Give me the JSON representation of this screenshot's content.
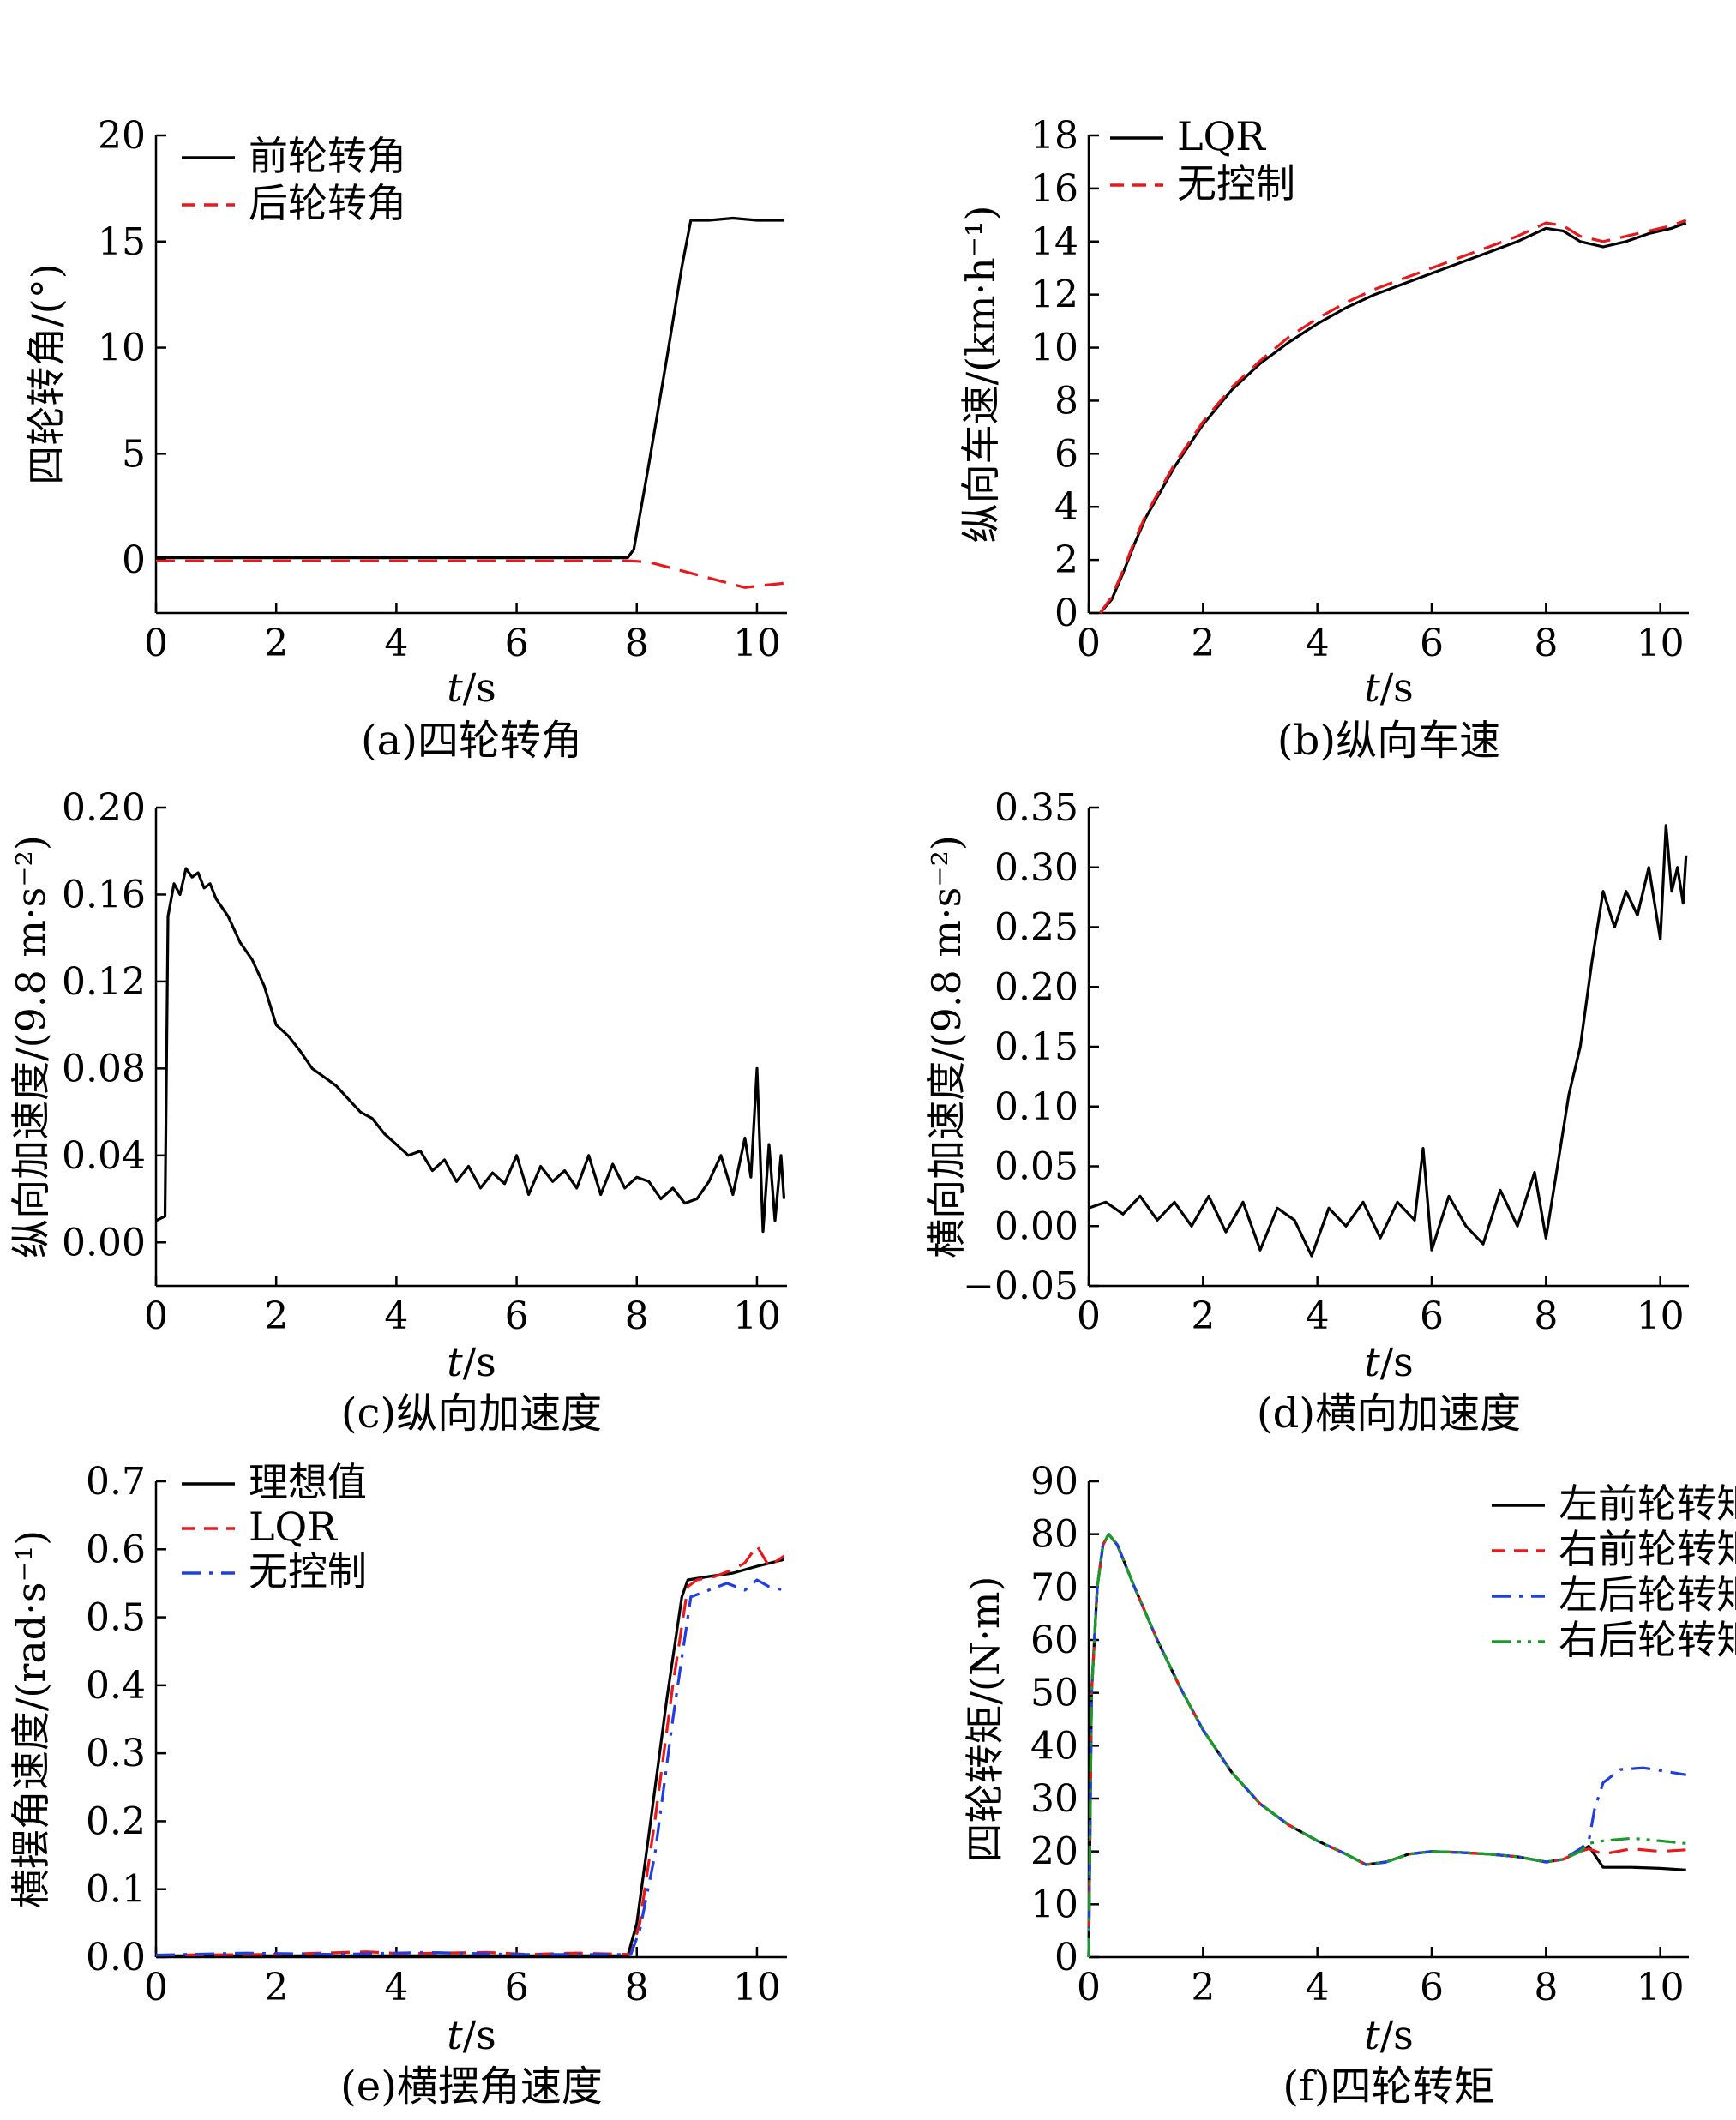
{
  "figure": {
    "panels": 6
  },
  "colors": {
    "black": "#000000",
    "red": "#e8191c",
    "blue": "#1f3fe0",
    "green": "#1a9a2a"
  },
  "chart_data": [
    {
      "id": "a",
      "type": "line",
      "caption": "(a)四轮转角",
      "ylabel": "四轮转角/(°)",
      "xlabel_it": "t",
      "xlabel_rest": "/s",
      "xlim": [
        0,
        10.5
      ],
      "ylim": [
        -2.5,
        20
      ],
      "xticks": [
        0,
        2,
        4,
        6,
        8,
        10
      ],
      "xtick_labels": [
        "0",
        "2",
        "4",
        "6",
        "8",
        "10"
      ],
      "yticks": [
        0,
        5,
        10,
        15,
        20
      ],
      "ytick_labels": [
        "0",
        "5",
        "10",
        "15",
        "20"
      ],
      "legend_position": "top-left",
      "series": [
        {
          "name": "前轮转角",
          "color": "#000000",
          "dash": "solid",
          "x": [
            0,
            7.85,
            7.95,
            8.2,
            8.5,
            8.75,
            8.9,
            9.2,
            9.6,
            10.0,
            10.45
          ],
          "y": [
            0.1,
            0.1,
            0.5,
            4.5,
            9.5,
            13.8,
            16.0,
            16.0,
            16.1,
            16.0,
            16.0
          ]
        },
        {
          "name": "后轮转角",
          "color": "#e8191c",
          "dash": "dash",
          "x": [
            0,
            7.9,
            8.2,
            8.6,
            9.0,
            9.4,
            9.8,
            10.1,
            10.45
          ],
          "y": [
            -0.05,
            -0.05,
            -0.1,
            -0.4,
            -0.7,
            -1.0,
            -1.3,
            -1.2,
            -1.1
          ]
        }
      ]
    },
    {
      "id": "b",
      "type": "line",
      "caption": "(b)纵向车速",
      "ylabel": "纵向车速/(km·h⁻¹)",
      "xlabel_it": "t",
      "xlabel_rest": "/s",
      "xlim": [
        0,
        10.5
      ],
      "ylim": [
        0,
        18
      ],
      "xticks": [
        0,
        2,
        4,
        6,
        8,
        10
      ],
      "xtick_labels": [
        "0",
        "2",
        "4",
        "6",
        "8",
        "10"
      ],
      "yticks": [
        0,
        2,
        4,
        6,
        8,
        10,
        12,
        14,
        16,
        18
      ],
      "ytick_labels": [
        "0",
        "2",
        "4",
        "6",
        "8",
        "10",
        "12",
        "14",
        "16",
        "18"
      ],
      "legend_position": "top-left",
      "series": [
        {
          "name": "LQR",
          "color": "#000000",
          "dash": "solid",
          "x": [
            0.2,
            0.4,
            0.6,
            0.8,
            1.0,
            1.5,
            2.0,
            2.5,
            3.0,
            3.5,
            4.0,
            4.5,
            5.0,
            5.5,
            6.0,
            6.5,
            7.0,
            7.5,
            8.0,
            8.3,
            8.6,
            9.0,
            9.4,
            9.8,
            10.2,
            10.45
          ],
          "y": [
            0,
            0.5,
            1.5,
            2.6,
            3.6,
            5.5,
            7.1,
            8.4,
            9.4,
            10.2,
            10.9,
            11.5,
            12.0,
            12.4,
            12.8,
            13.2,
            13.6,
            14.0,
            14.5,
            14.4,
            14.0,
            13.8,
            14.0,
            14.3,
            14.5,
            14.7
          ]
        },
        {
          "name": "无控制",
          "color": "#e8191c",
          "dash": "dash",
          "x": [
            0.2,
            0.4,
            0.6,
            0.8,
            1.0,
            1.5,
            2.0,
            2.5,
            3.0,
            3.5,
            4.0,
            4.5,
            5.0,
            5.5,
            6.0,
            6.5,
            7.0,
            7.5,
            8.0,
            8.3,
            8.6,
            9.0,
            9.4,
            9.8,
            10.2,
            10.45
          ],
          "y": [
            0,
            0.6,
            1.6,
            2.7,
            3.7,
            5.6,
            7.2,
            8.5,
            9.5,
            10.4,
            11.1,
            11.7,
            12.2,
            12.6,
            13.0,
            13.4,
            13.8,
            14.2,
            14.7,
            14.6,
            14.2,
            14.0,
            14.2,
            14.4,
            14.6,
            14.8
          ]
        }
      ]
    },
    {
      "id": "c",
      "type": "line",
      "caption": "(c)纵向加速度",
      "ylabel": "纵向加速度/(9.8 m·s⁻²)",
      "xlabel_it": "t",
      "xlabel_rest": "/s",
      "xlim": [
        0,
        10.5
      ],
      "ylim": [
        -0.02,
        0.2
      ],
      "xticks": [
        0,
        2,
        4,
        6,
        8,
        10
      ],
      "xtick_labels": [
        "0",
        "2",
        "4",
        "6",
        "8",
        "10"
      ],
      "yticks": [
        0,
        0.04,
        0.08,
        0.12,
        0.16,
        0.2
      ],
      "ytick_labels": [
        "0.00",
        "0.04",
        "0.08",
        "0.12",
        "0.16",
        "0.20"
      ],
      "series": [
        {
          "name": "",
          "color": "#000000",
          "dash": "solid",
          "x": [
            0,
            0.15,
            0.2,
            0.3,
            0.4,
            0.5,
            0.6,
            0.7,
            0.8,
            0.9,
            1.0,
            1.2,
            1.4,
            1.6,
            1.8,
            2.0,
            2.2,
            2.4,
            2.6,
            2.8,
            3.0,
            3.2,
            3.4,
            3.6,
            3.8,
            4.0,
            4.2,
            4.4,
            4.6,
            4.8,
            5.0,
            5.2,
            5.4,
            5.6,
            5.8,
            6.0,
            6.2,
            6.4,
            6.6,
            6.8,
            7.0,
            7.2,
            7.4,
            7.6,
            7.8,
            8.0,
            8.2,
            8.4,
            8.6,
            8.8,
            9.0,
            9.2,
            9.4,
            9.6,
            9.8,
            9.9,
            10.0,
            10.1,
            10.2,
            10.3,
            10.4,
            10.45
          ],
          "y": [
            0.01,
            0.012,
            0.15,
            0.165,
            0.16,
            0.172,
            0.168,
            0.17,
            0.163,
            0.165,
            0.158,
            0.15,
            0.138,
            0.13,
            0.118,
            0.1,
            0.095,
            0.088,
            0.08,
            0.076,
            0.072,
            0.066,
            0.06,
            0.057,
            0.05,
            0.045,
            0.04,
            0.042,
            0.033,
            0.038,
            0.028,
            0.035,
            0.025,
            0.032,
            0.027,
            0.04,
            0.022,
            0.035,
            0.028,
            0.033,
            0.025,
            0.04,
            0.022,
            0.036,
            0.025,
            0.03,
            0.028,
            0.02,
            0.025,
            0.018,
            0.02,
            0.028,
            0.04,
            0.022,
            0.048,
            0.03,
            0.08,
            0.005,
            0.045,
            0.01,
            0.04,
            0.02
          ]
        }
      ]
    },
    {
      "id": "d",
      "type": "line",
      "caption": "(d)横向加速度",
      "ylabel": "横向加速度/(9.8 m·s⁻²)",
      "xlabel_it": "t",
      "xlabel_rest": "/s",
      "xlim": [
        0,
        10.5
      ],
      "ylim": [
        -0.05,
        0.35
      ],
      "xticks": [
        0,
        2,
        4,
        6,
        8,
        10
      ],
      "xtick_labels": [
        "0",
        "2",
        "4",
        "6",
        "8",
        "10"
      ],
      "yticks": [
        -0.05,
        0,
        0.05,
        0.1,
        0.15,
        0.2,
        0.25,
        0.3,
        0.35
      ],
      "ytick_labels": [
        "−0.05",
        "0.00",
        "0.05",
        "0.10",
        "0.15",
        "0.20",
        "0.25",
        "0.30",
        "0.35"
      ],
      "series": [
        {
          "name": "",
          "color": "#000000",
          "dash": "solid",
          "x": [
            0,
            0.3,
            0.6,
            0.9,
            1.2,
            1.5,
            1.8,
            2.1,
            2.4,
            2.7,
            3.0,
            3.3,
            3.6,
            3.9,
            4.2,
            4.5,
            4.8,
            5.1,
            5.4,
            5.7,
            5.85,
            6.0,
            6.3,
            6.6,
            6.9,
            7.2,
            7.5,
            7.8,
            8.0,
            8.2,
            8.4,
            8.6,
            8.8,
            9.0,
            9.2,
            9.4,
            9.6,
            9.8,
            10.0,
            10.1,
            10.2,
            10.3,
            10.4,
            10.45
          ],
          "y": [
            0.015,
            0.02,
            0.01,
            0.025,
            0.005,
            0.02,
            0.0,
            0.025,
            -0.005,
            0.02,
            -0.02,
            0.015,
            0.005,
            -0.025,
            0.015,
            0.0,
            0.02,
            -0.01,
            0.02,
            0.005,
            0.065,
            -0.02,
            0.025,
            0.0,
            -0.015,
            0.03,
            0.0,
            0.045,
            -0.01,
            0.05,
            0.11,
            0.15,
            0.22,
            0.28,
            0.25,
            0.28,
            0.26,
            0.3,
            0.24,
            0.335,
            0.28,
            0.3,
            0.27,
            0.31
          ]
        }
      ]
    },
    {
      "id": "e",
      "type": "line",
      "caption": "(e)横摆角速度",
      "ylabel": "横摆角速度/(rad·s⁻¹)",
      "xlabel_it": "t",
      "xlabel_rest": "/s",
      "xlim": [
        0,
        10.5
      ],
      "ylim": [
        0,
        0.7
      ],
      "xticks": [
        0,
        2,
        4,
        6,
        8,
        10
      ],
      "xtick_labels": [
        "0",
        "2",
        "4",
        "6",
        "8",
        "10"
      ],
      "yticks": [
        0,
        0.1,
        0.2,
        0.3,
        0.4,
        0.5,
        0.6,
        0.7
      ],
      "ytick_labels": [
        "0.0",
        "0.1",
        "0.2",
        "0.3",
        "0.4",
        "0.5",
        "0.6",
        "0.7"
      ],
      "legend_position": "top-left",
      "series": [
        {
          "name": "理想值",
          "color": "#000000",
          "dash": "solid",
          "x": [
            0,
            7.85,
            8.0,
            8.2,
            8.5,
            8.75,
            8.85,
            9.2,
            9.6,
            10.0,
            10.45
          ],
          "y": [
            0.002,
            0.002,
            0.05,
            0.18,
            0.38,
            0.53,
            0.555,
            0.56,
            0.565,
            0.575,
            0.585
          ]
        },
        {
          "name": "LQR",
          "color": "#e8191c",
          "dash": "dash",
          "x": [
            0,
            2.0,
            3.5,
            4.1,
            5.5,
            6.2,
            7.0,
            7.9,
            8.05,
            8.3,
            8.6,
            8.85,
            9.0,
            9.3,
            9.6,
            9.8,
            10.0,
            10.2,
            10.45
          ],
          "y": [
            0.003,
            0.004,
            0.008,
            0.005,
            0.007,
            0.004,
            0.006,
            0.004,
            0.05,
            0.2,
            0.4,
            0.545,
            0.555,
            0.56,
            0.57,
            0.58,
            0.605,
            0.575,
            0.59
          ]
        },
        {
          "name": "无控制",
          "color": "#1f3fe0",
          "dash": "dashdot",
          "x": [
            0,
            1.5,
            3.0,
            4.5,
            6.0,
            7.9,
            8.05,
            8.3,
            8.6,
            8.9,
            9.2,
            9.5,
            9.8,
            10.0,
            10.2,
            10.45
          ],
          "y": [
            0.003,
            0.006,
            0.004,
            0.007,
            0.004,
            0.004,
            0.04,
            0.15,
            0.35,
            0.53,
            0.54,
            0.55,
            0.54,
            0.555,
            0.545,
            0.54
          ]
        }
      ]
    },
    {
      "id": "f",
      "type": "line",
      "caption": "(f)四轮转矩",
      "ylabel": "四轮转矩/(N·m)",
      "xlabel_it": "t",
      "xlabel_rest": "/s",
      "xlim": [
        0,
        10.5
      ],
      "ylim": [
        0,
        90
      ],
      "xticks": [
        0,
        2,
        4,
        6,
        8,
        10
      ],
      "xtick_labels": [
        "0",
        "2",
        "4",
        "6",
        "8",
        "10"
      ],
      "yticks": [
        0,
        10,
        20,
        30,
        40,
        50,
        60,
        70,
        80,
        90
      ],
      "ytick_labels": [
        "0",
        "10",
        "20",
        "30",
        "40",
        "50",
        "60",
        "70",
        "80",
        "90"
      ],
      "legend_position": "top-right",
      "series": [
        {
          "name": "左前轮转矩",
          "color": "#000000",
          "dash": "solid",
          "x": [
            0,
            0.05,
            0.15,
            0.25,
            0.35,
            0.5,
            0.8,
            1.2,
            1.6,
            2.0,
            2.5,
            3.0,
            3.5,
            4.0,
            4.5,
            4.85,
            5.2,
            5.6,
            6.0,
            6.5,
            7.0,
            7.5,
            8.0,
            8.3,
            8.6,
            8.75,
            9.0,
            9.5,
            10.0,
            10.45
          ],
          "y": [
            0,
            50,
            70,
            78,
            80,
            78,
            70,
            60,
            51,
            43,
            35,
            29,
            25,
            22,
            19.5,
            17.5,
            18,
            19.5,
            20,
            19.8,
            19.5,
            19,
            18,
            18.5,
            20,
            21,
            17,
            17,
            16.8,
            16.5
          ]
        },
        {
          "name": "右前轮转矩",
          "color": "#e8191c",
          "dash": "dash",
          "x": [
            0,
            0.05,
            0.15,
            0.25,
            0.35,
            0.5,
            0.8,
            1.2,
            1.6,
            2.0,
            2.5,
            3.0,
            3.5,
            4.0,
            4.5,
            4.85,
            5.2,
            5.6,
            6.0,
            6.5,
            7.0,
            7.5,
            8.0,
            8.3,
            8.6,
            8.75,
            9.0,
            9.5,
            10.0,
            10.45
          ],
          "y": [
            0,
            50,
            70,
            78,
            80,
            78,
            70,
            60,
            51,
            43,
            35,
            29,
            25,
            22,
            19.5,
            17.5,
            18,
            19.5,
            20,
            19.8,
            19.5,
            19,
            18,
            18.5,
            20,
            20.5,
            19.5,
            20.5,
            20,
            20.3
          ]
        },
        {
          "name": "左后轮转矩",
          "color": "#1f3fe0",
          "dash": "dashdot",
          "x": [
            0,
            0.05,
            0.15,
            0.25,
            0.35,
            0.5,
            0.8,
            1.2,
            1.6,
            2.0,
            2.5,
            3.0,
            3.5,
            4.0,
            4.5,
            4.85,
            5.2,
            5.6,
            6.0,
            6.5,
            7.0,
            7.5,
            8.0,
            8.3,
            8.6,
            8.75,
            8.85,
            9.0,
            9.3,
            9.7,
            10.0,
            10.45
          ],
          "y": [
            0,
            50,
            70,
            78,
            80,
            78,
            70,
            60,
            51,
            43,
            35,
            29,
            25,
            22,
            19.5,
            17.5,
            18,
            19.5,
            20,
            19.8,
            19.5,
            19,
            18,
            18.5,
            20.5,
            22,
            28,
            33,
            35.5,
            35.8,
            35.3,
            34.5
          ]
        },
        {
          "name": "右后轮转矩",
          "color": "#1a9a2a",
          "dash": "dashdotdot",
          "x": [
            0,
            0.05,
            0.15,
            0.25,
            0.35,
            0.5,
            0.8,
            1.2,
            1.6,
            2.0,
            2.5,
            3.0,
            3.5,
            4.0,
            4.5,
            4.85,
            5.2,
            5.6,
            6.0,
            6.5,
            7.0,
            7.5,
            8.0,
            8.3,
            8.6,
            8.75,
            9.0,
            9.5,
            10.0,
            10.45
          ],
          "y": [
            0,
            50,
            70,
            78,
            80,
            78,
            70,
            60,
            51,
            43,
            35,
            29,
            25,
            22,
            19.5,
            17.5,
            18,
            19.5,
            20,
            19.8,
            19.5,
            19,
            18,
            18.5,
            20,
            21.5,
            22,
            22.5,
            22,
            21.5
          ]
        }
      ]
    }
  ]
}
